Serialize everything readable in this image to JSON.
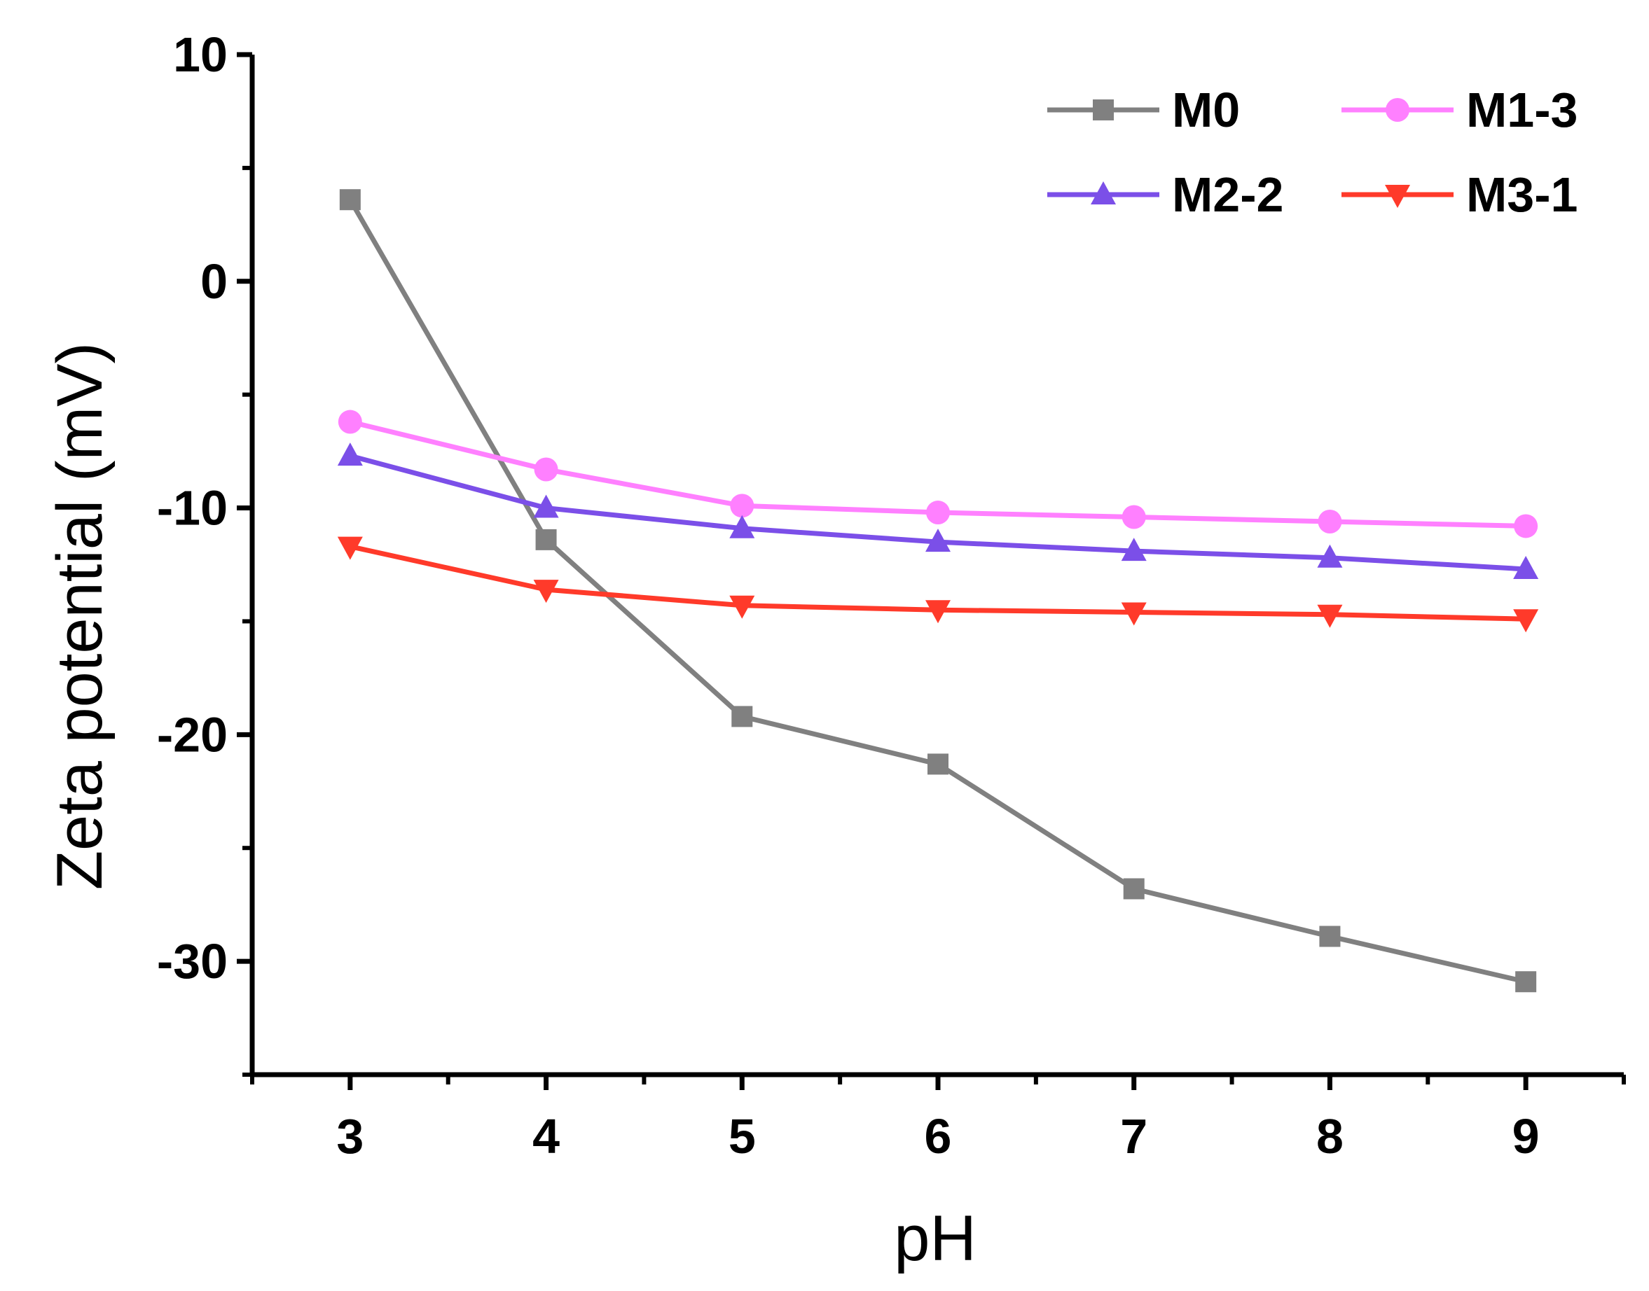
{
  "chart_data": {
    "type": "line",
    "title": "",
    "xlabel": "pH",
    "ylabel": "Zeta potential (mV)",
    "x": [
      3,
      4,
      5,
      6,
      7,
      8,
      9
    ],
    "xlim": [
      2.5,
      9.5
    ],
    "ylim": [
      -35,
      10
    ],
    "xticks": [
      3,
      4,
      5,
      6,
      7,
      8,
      9
    ],
    "xtick_labels": [
      "3",
      "4",
      "5",
      "6",
      "7",
      "8",
      "9"
    ],
    "yticks": [
      10,
      0,
      -10,
      -20,
      -30
    ],
    "ytick_labels": [
      "10",
      "0",
      "-10",
      "-20",
      "-30"
    ],
    "grid": false,
    "legend_position": "top-right",
    "series": [
      {
        "name": "M0",
        "color": "#808080",
        "marker": "square",
        "values": [
          3.6,
          -11.4,
          -19.2,
          -21.3,
          -26.8,
          -28.9,
          -30.9
        ]
      },
      {
        "name": "M1-3",
        "color": "#ff80ff",
        "marker": "circle",
        "values": [
          -6.2,
          -8.3,
          -9.9,
          -10.2,
          -10.4,
          -10.6,
          -10.8
        ]
      },
      {
        "name": "M2-2",
        "color": "#7b4fe8",
        "marker": "triangle-up",
        "values": [
          -7.7,
          -10.0,
          -10.9,
          -11.5,
          -11.9,
          -12.2,
          -12.7
        ]
      },
      {
        "name": "M3-1",
        "color": "#ff3a2a",
        "marker": "triangle-down",
        "values": [
          -11.7,
          -13.6,
          -14.3,
          -14.5,
          -14.6,
          -14.7,
          -14.9
        ]
      }
    ]
  }
}
